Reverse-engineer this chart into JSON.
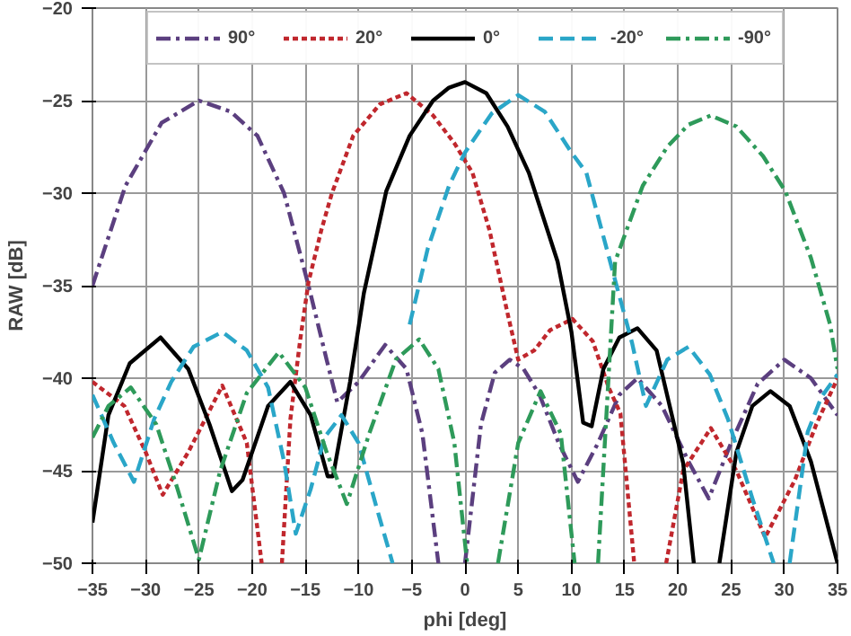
{
  "chart_data": {
    "type": "line",
    "xlabel": "phi [deg]",
    "ylabel": "RAW [dB]",
    "xlim": [
      -35,
      35
    ],
    "xticks": [
      -35,
      -30,
      -25,
      -20,
      -15,
      -10,
      -5,
      0,
      5,
      10,
      15,
      20,
      25,
      30,
      35
    ],
    "ylim": [
      -50,
      -20
    ],
    "yticks": [
      -50,
      -45,
      -40,
      -35,
      -30,
      -25,
      -20
    ],
    "grid": true,
    "legend": "top",
    "marker": "none",
    "series": [
      {
        "name": "90°",
        "color": "#5b3f7f",
        "line_style": "dashdot",
        "x": [
          -35,
          -31.9,
          -28.5,
          -25,
          -22,
          -19.5,
          -17,
          -14.7,
          -13,
          -12,
          -10,
          -7.5,
          -5.5,
          -4,
          -2.5,
          -1.2,
          0,
          1.5,
          2.8,
          4.2,
          5.5,
          7,
          8.8,
          10.6,
          12.5,
          14.5,
          16.2,
          18.5,
          21,
          22.9,
          25,
          27.5,
          30,
          32.5,
          35
        ],
        "values": [
          -35,
          -29.6,
          -26.2,
          -25,
          -25.6,
          -26.9,
          -30,
          -35,
          -39,
          -41.3,
          -40.2,
          -38.2,
          -39.5,
          -43,
          -50,
          null,
          -50,
          -42.5,
          -39.7,
          -39,
          -39.5,
          -40.9,
          -43.5,
          -45.6,
          -43.5,
          -40.9,
          -40,
          -41.5,
          -44.5,
          -46.5,
          -43.5,
          -40.3,
          -39,
          -40,
          -42
        ]
      },
      {
        "name": "20°",
        "color": "#c0272d",
        "line_style": "dotted",
        "x": [
          -35,
          -32,
          -30,
          -28.4,
          -26,
          -22.8,
          -20.5,
          -19.1,
          -18.1,
          -17.2,
          -16.4,
          -15.5,
          -14.7,
          -13.5,
          -12.5,
          -10.5,
          -8,
          -5.5,
          -3,
          -1,
          0.7,
          2.3,
          4,
          5,
          6.5,
          8,
          10.1,
          12,
          13.5,
          14.6,
          15.9,
          17.4,
          18.9,
          20.5,
          23.1,
          25.5,
          28.2,
          31,
          33,
          35
        ],
        "values": [
          -40.2,
          -41.5,
          -44,
          -46.3,
          -44,
          -40.4,
          -43.5,
          -50,
          null,
          -50,
          -42.2,
          -38,
          -34.8,
          -32,
          -30,
          -26.9,
          -25.2,
          -24.6,
          -25.8,
          -27.3,
          -28.9,
          -32,
          -36.5,
          -39,
          -38.5,
          -37.4,
          -36.8,
          -38,
          -40.5,
          -41.9,
          -50,
          null,
          -50,
          -45,
          -42.7,
          -45,
          -48.6,
          -45.5,
          -42.5,
          -40
        ]
      },
      {
        "name": "0°",
        "color": "#000000",
        "line_style": "solid",
        "x": [
          -35,
          -33.5,
          -31.5,
          -28.6,
          -26,
          -24,
          -21.9,
          -20.9,
          -18.5,
          -16.4,
          -14.5,
          -12.9,
          -12.4,
          -10.8,
          -9.5,
          -7.4,
          -5.2,
          -3,
          -1.5,
          0,
          2,
          4,
          6,
          8.7,
          10,
          11.1,
          11.9,
          13,
          14.5,
          16.2,
          18,
          20.5,
          21.5,
          22.7,
          23.9,
          25.5,
          27,
          28.7,
          30.5,
          32.5,
          35
        ],
        "values": [
          -47.8,
          -42,
          -39.2,
          -37.8,
          -39.5,
          -42.5,
          -46.1,
          -45.5,
          -41.5,
          -40.2,
          -42,
          -45.3,
          -45.3,
          -40.2,
          -35.4,
          -29.9,
          -26.9,
          -25,
          -24.3,
          -24,
          -24.6,
          -26.4,
          -28.9,
          -33.7,
          -37.5,
          -42.4,
          -42.6,
          -39.5,
          -37.8,
          -37.3,
          -38.5,
          -44.6,
          -50,
          null,
          -50,
          -44,
          -41.5,
          -40.7,
          -41.5,
          -44.5,
          -50
        ]
      },
      {
        "name": "-20°",
        "color": "#2aa6c8",
        "line_style": "dashed",
        "x": [
          -35,
          -33,
          -31.1,
          -29.2,
          -27.6,
          -25.5,
          -22.8,
          -20.5,
          -18.5,
          -17,
          -15.9,
          -14.5,
          -13.2,
          -11.6,
          -10,
          -8.3,
          -6.8,
          -6,
          -5.2,
          -3.5,
          -1.5,
          0,
          2.5,
          5,
          7.5,
          10,
          11.4,
          14.1,
          15.7,
          17,
          19,
          21,
          23,
          24.7,
          27,
          29,
          29.8,
          30.5,
          32.2,
          33.5,
          35
        ],
        "values": [
          -40.9,
          -43.5,
          -45.6,
          -42.2,
          -40.2,
          -38.3,
          -37.5,
          -38.5,
          -40.5,
          -44.5,
          -48.4,
          -46,
          -43.2,
          -42,
          -43.5,
          -47,
          -50,
          null,
          -37.1,
          -33,
          -29.6,
          -27.8,
          -25.7,
          -24.7,
          -25.6,
          -27.8,
          -28.9,
          -34.7,
          -38.1,
          -41.5,
          -39,
          -38.3,
          -39.8,
          -42.2,
          -46.5,
          -50,
          null,
          -50,
          -42.9,
          -41,
          -39.8
        ]
      },
      {
        "name": "-90°",
        "color": "#2e9a5a",
        "line_style": "dashdot",
        "x": [
          -35,
          -33.5,
          -31.4,
          -29,
          -27,
          -25,
          -23,
          -20.5,
          -17.5,
          -15,
          -13,
          -11.1,
          -9,
          -6.5,
          -4.3,
          -2.5,
          -1,
          0.2,
          1.6,
          3.1,
          5,
          7.1,
          9,
          10.3,
          11.4,
          12.5,
          14.1,
          16.7,
          19,
          21,
          23.1,
          25.5,
          28,
          30.1,
          32.5,
          34.3,
          35
        ],
        "values": [
          -43.2,
          -41.5,
          -40.5,
          -42.5,
          -46,
          -49.8,
          -45,
          -40.8,
          -38.6,
          -40.5,
          -44,
          -46.8,
          -43,
          -39,
          -37.9,
          -39.5,
          -43.5,
          -50,
          null,
          -50,
          -43.5,
          -40.7,
          -43,
          -50,
          null,
          -50,
          -33.7,
          -29.6,
          -27.5,
          -26.3,
          -25.8,
          -26.4,
          -28,
          -29.9,
          -33.5,
          -37.1,
          -39.5
        ]
      }
    ]
  }
}
